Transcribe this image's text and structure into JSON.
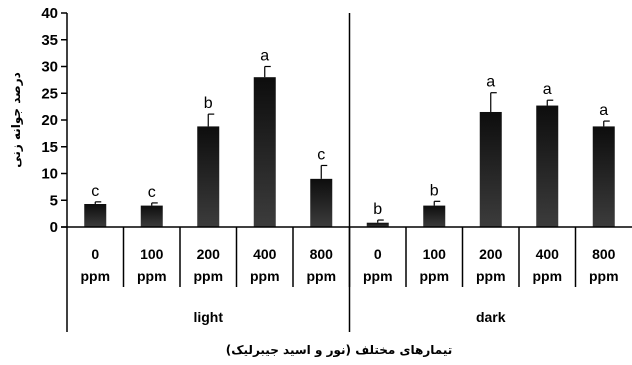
{
  "chart_data": {
    "type": "bar",
    "categories": [
      "0 ppm",
      "100 ppm",
      "200 ppm",
      "400 ppm",
      "800 ppm",
      "0 ppm",
      "100 ppm",
      "200 ppm",
      "400 ppm",
      "800 ppm"
    ],
    "category_lines": [
      [
        "0",
        "ppm"
      ],
      [
        "100",
        "ppm"
      ],
      [
        "200",
        "ppm"
      ],
      [
        "400",
        "ppm"
      ],
      [
        "800",
        "ppm"
      ],
      [
        "0",
        "ppm"
      ],
      [
        "100",
        "ppm"
      ],
      [
        "200",
        "ppm"
      ],
      [
        "400",
        "ppm"
      ],
      [
        "800",
        "ppm"
      ]
    ],
    "groups": [
      {
        "label": "light",
        "from": 0,
        "to": 4
      },
      {
        "label": "dark",
        "from": 5,
        "to": 9
      }
    ],
    "values": [
      4.3,
      4.0,
      18.8,
      28.0,
      9.0,
      0.8,
      4.0,
      21.5,
      22.7,
      18.8
    ],
    "errors": [
      0.4,
      0.5,
      2.3,
      2.0,
      2.5,
      0.5,
      0.8,
      3.6,
      1.0,
      1.0
    ],
    "significance": [
      "c",
      "c",
      "b",
      "a",
      "c",
      "b",
      "b",
      "a",
      "a",
      "a"
    ],
    "ylim": [
      0,
      40
    ],
    "yticks": [
      0,
      5,
      10,
      15,
      20,
      25,
      30,
      35,
      40
    ],
    "ylabel": "درصد جوانه زنی",
    "xlabel": "تیمارهای مختلف (نور و اسید جیبرلیک)",
    "colors": {
      "bar_top": "#0d0d0d",
      "bar_bottom": "#3c3c3c",
      "axis": "#000000"
    }
  }
}
